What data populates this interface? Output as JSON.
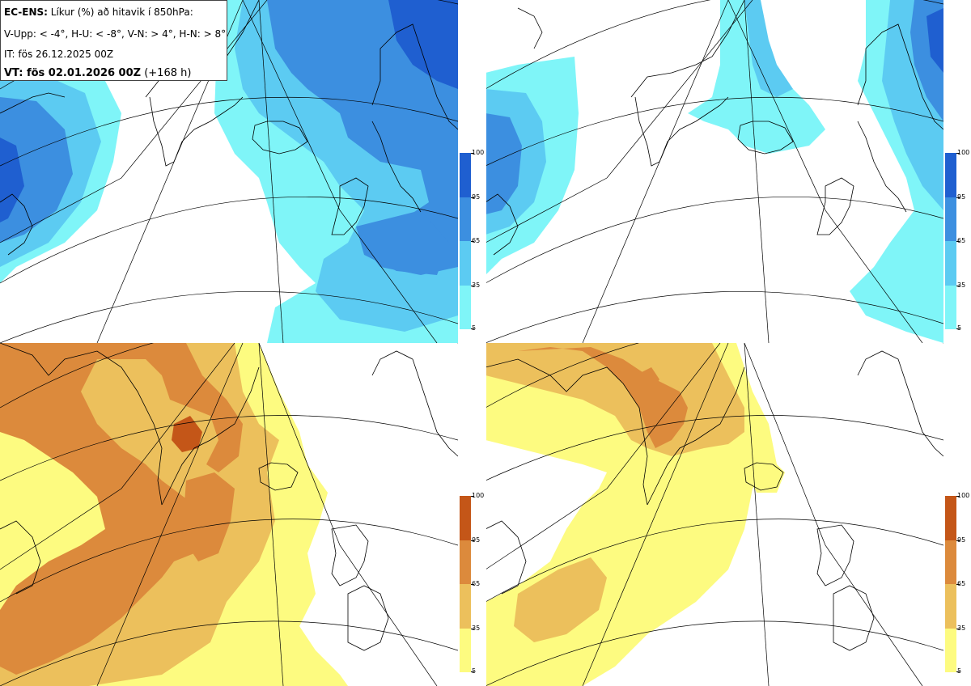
{
  "header": {
    "line1_bold": "EC-ENS:",
    "line1_rest": " Líkur (%) að hitavik í 850hPa:",
    "line2": "V-Upp: < -4°, H-U: < -8°, V-N: > 4°, H-N: > 8°",
    "line3": "IT: fös 26.12.2025 00Z",
    "line4_bold": "VT: fös 02.01.2026 00Z",
    "line4_rest": " (+168 h)"
  },
  "panels": [
    {
      "name": "cold-4-panel",
      "label": "V-Upp"
    },
    {
      "name": "cold-8-panel",
      "label": "H-U"
    },
    {
      "name": "warm-4-panel",
      "label": "V-N"
    },
    {
      "name": "warm-8-panel",
      "label": "H-N"
    }
  ],
  "legend": {
    "ticks": [
      "100",
      "95",
      "65",
      "35",
      "5"
    ],
    "blue_colors": [
      "#1f5fd0",
      "#3c8fe0",
      "#5ccbf2",
      "#7ff5f8"
    ],
    "orange_colors": [
      "#c45618",
      "#dc8a3c",
      "#ecc05c",
      "#fdfb80"
    ]
  },
  "colors": {
    "blue1": "#7ff5f8",
    "blue2": "#5ccbf2",
    "blue3": "#3c8fe0",
    "blue4": "#1f5fd0",
    "or1": "#fdfb80",
    "or2": "#ecc05c",
    "or3": "#dc8a3c",
    "or4": "#c45618"
  }
}
